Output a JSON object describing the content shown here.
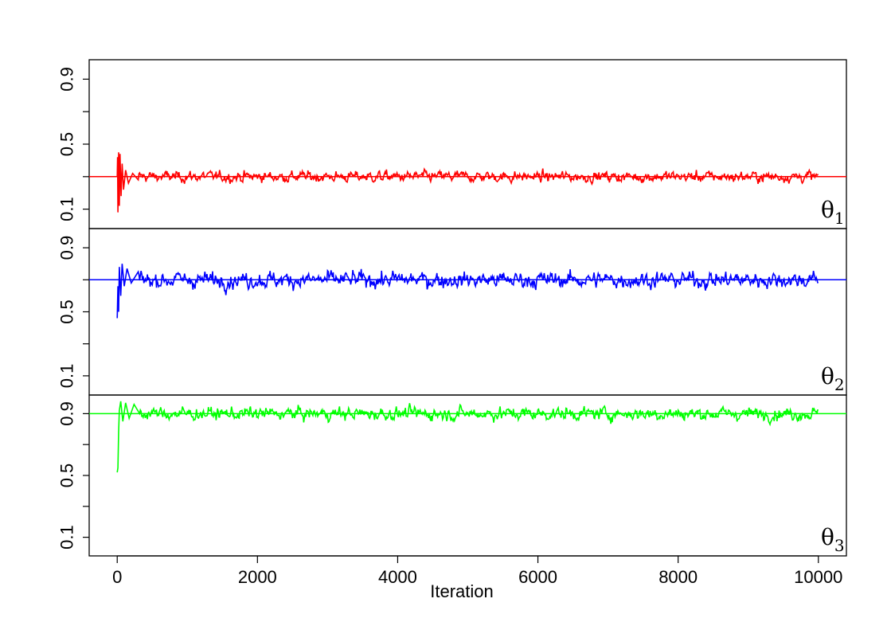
{
  "chart_data": {
    "type": "line",
    "xlabel": "Iteration",
    "x_ticks": [
      0,
      2000,
      4000,
      6000,
      8000,
      10000
    ],
    "xlim": [
      -400,
      10400
    ],
    "y_ticks": [
      0.1,
      0.5,
      0.9
    ],
    "y_ticks_minor": [
      0.3,
      0.7
    ],
    "grid": false,
    "legend": "none",
    "series": [
      {
        "name": "θ1",
        "label_main": "θ",
        "label_sub": "1",
        "color": "#ff0000",
        "true_value": 0.3,
        "ylim": [
          0.0,
          1.0
        ],
        "iterations": 10000,
        "steady_mean": 0.3,
        "steady_spread": 0.02,
        "burn_in_points": [
          [
            0,
            0.3
          ],
          [
            5,
            0.42
          ],
          [
            10,
            0.08
          ],
          [
            20,
            0.45
          ],
          [
            30,
            0.12
          ],
          [
            40,
            0.44
          ],
          [
            55,
            0.18
          ],
          [
            70,
            0.38
          ],
          [
            90,
            0.22
          ],
          [
            120,
            0.34
          ],
          [
            160,
            0.26
          ],
          [
            220,
            0.32
          ],
          [
            300,
            0.28
          ]
        ]
      },
      {
        "name": "θ2",
        "label_main": "θ",
        "label_sub": "2",
        "color": "#0000ff",
        "true_value": 0.7,
        "ylim": [
          0.0,
          1.0
        ],
        "iterations": 10000,
        "steady_mean": 0.7,
        "steady_spread": 0.03,
        "burn_in_points": [
          [
            0,
            0.46
          ],
          [
            10,
            0.66
          ],
          [
            20,
            0.5
          ],
          [
            30,
            0.78
          ],
          [
            50,
            0.6
          ],
          [
            70,
            0.8
          ],
          [
            100,
            0.66
          ],
          [
            140,
            0.77
          ],
          [
            200,
            0.68
          ],
          [
            300,
            0.75
          ]
        ]
      },
      {
        "name": "θ3",
        "label_main": "θ",
        "label_sub": "3",
        "color": "#00ff00",
        "true_value": 0.9,
        "ylim": [
          0.0,
          1.0
        ],
        "iterations": 10000,
        "steady_mean": 0.9,
        "steady_spread": 0.025,
        "burn_in_points": [
          [
            0,
            0.52
          ],
          [
            10,
            0.55
          ],
          [
            20,
            0.78
          ],
          [
            30,
            0.92
          ],
          [
            50,
            0.98
          ],
          [
            80,
            0.85
          ],
          [
            120,
            0.97
          ],
          [
            170,
            0.87
          ],
          [
            240,
            0.96
          ],
          [
            320,
            0.9
          ]
        ]
      }
    ]
  }
}
